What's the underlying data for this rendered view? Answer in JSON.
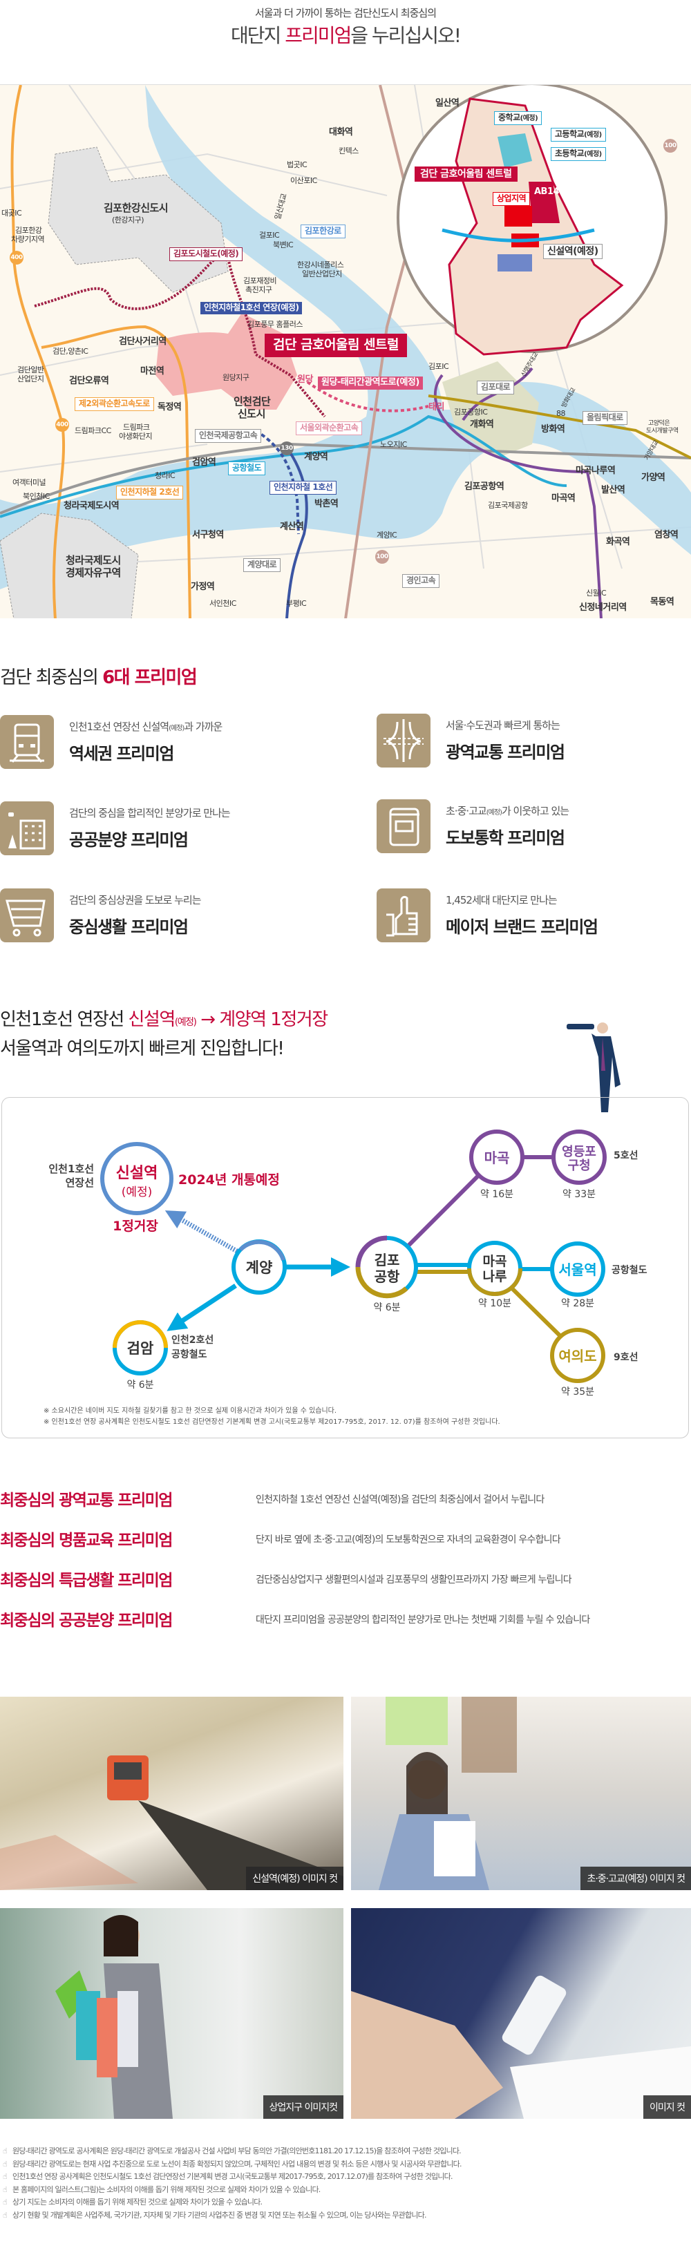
{
  "header": {
    "subtitle": "서울과 더 가까이 통하는 검단신도시 최중심의",
    "title_pre": "대단지 ",
    "title_red": "프리미엄",
    "title_post": "을 누리십시오!"
  },
  "map": {
    "labels": [
      "김포한강신도시",
      "(한강지구)",
      "김포도시철도(예정)",
      "대곶IC",
      "김포한강",
      "차량기지역",
      "400",
      "대화역",
      "킨텍스",
      "법곳IC",
      "이산포IC",
      "일산대교",
      "김포한강로",
      "걸포IC",
      "북변IC",
      "한강시네폴리스",
      "일반산업단지",
      "김포재정비",
      "촉진지구",
      "인천지하철1호선 연장(예정)",
      "김포풍무 홈플러스",
      "검단 금호어울림 센트럴",
      "검단사거리역",
      "검단,양촌IC",
      "검단일반",
      "산업단지",
      "검단오류역",
      "마전역",
      "원당지구",
      "인천검단",
      "신도시",
      "원당",
      "원당-태리간광역도로(예정)",
      "제2외곽순환고속도로",
      "독정역",
      "400",
      "드림파크CC",
      "드림파크",
      "야생화단지",
      "서울외곽순환고속",
      "인천국제공항고속",
      "130",
      "계양역",
      "검암역",
      "공항철도",
      "청라IC",
      "인천지하철 1호선",
      "인천지하철 2호선",
      "여객터미널",
      "북인천IC",
      "청라국제도시역",
      "박촌역",
      "계산역",
      "서구청역",
      "청라국제도시",
      "경제자유구역",
      "계양대로",
      "가정역",
      "서인천IC",
      "부평IC",
      "김포IC",
      "김포대로",
      "태리",
      "김포공항IC",
      "88",
      "올림픽대로",
      "개화역",
      "방화역",
      "노오지IC",
      "고양덕은",
      "도시개발구역",
      "마곡나루역",
      "가양역",
      "김포공항역",
      "발산역",
      "마곡역",
      "김포국제공항",
      "염창역",
      "계양IC",
      "100",
      "화곡역",
      "경인고속",
      "신월IC",
      "신정네거리역",
      "목동역",
      "일산역",
      "100",
      "신행주대교",
      "방화대교",
      "가양대교"
    ],
    "inset": {
      "middle": "중학교",
      "high": "고등학교",
      "elem": "초등학교",
      "planned": "(예정)",
      "complex": "검단 금호어울림 센트럴",
      "block": "AB14",
      "commercial": "상업지역",
      "station": "신설역(예정)"
    }
  },
  "premium6": {
    "title_pre": "검단 최중심의 ",
    "title_red": "6대 프리미엄",
    "items": [
      {
        "icon": "train-icon",
        "sub_pre": "인천1호선 연장선 신설역",
        "sub_small": "(예정)",
        "sub_post": "과 가까운",
        "title": "역세권 프리미엄"
      },
      {
        "icon": "highway-icon",
        "sub_pre": "서울·수도권과 빠르게 통하는",
        "sub_small": "",
        "sub_post": "",
        "title": "광역교통 프리미엄"
      },
      {
        "icon": "building-icon",
        "sub_pre": "검단의 중심을 합리적인 분양가로 만나는",
        "sub_small": "",
        "sub_post": "",
        "title": "공공분양 프리미엄"
      },
      {
        "icon": "book-icon",
        "sub_pre": "초·중·고교",
        "sub_small": "(예정)",
        "sub_post": "가 이웃하고 있는",
        "title": "도보통학 프리미엄"
      },
      {
        "icon": "cart-icon",
        "sub_pre": "검단의 중심상권을 도보로 누리는",
        "sub_small": "",
        "sub_post": "",
        "title": "중심생활 프리미엄"
      },
      {
        "icon": "thumbs-up-icon",
        "sub_pre": "1,452세대 대단지로 만나는",
        "sub_small": "",
        "sub_post": "",
        "title": "메이저 브랜드 프리미엄"
      }
    ]
  },
  "route": {
    "head1_pre": "인천1호선 연장선 ",
    "head1_red": "신설역",
    "head1_small": "(예정)",
    "head1_arrow": " → 계양역 1정거장",
    "head2": "서울역과 여의도까지 빠르게 진입합니다!",
    "line1_a": "인천1호선",
    "line1_b": "연장선",
    "new_st": "신설역",
    "new_st2": "(예정)",
    "open": "2024년 개통예정",
    "one_stop": "1정거장",
    "gyeyang": "계양",
    "geomam": "검암",
    "geomam_l1": "인천2호선",
    "geomam_l2": "공항철도",
    "geomam_t": "약 6분",
    "gimpo1": "김포",
    "gimpo2": "공항",
    "gimpo_t": "약 6분",
    "magok": "마곡",
    "magok_t": "약 16분",
    "ydp1": "영등포",
    "ydp2": "구청",
    "ydp_t": "약 33분",
    "line5": "5호선",
    "mgn1": "마곡",
    "mgn2": "나루",
    "mgn_t": "약 10분",
    "seoul": "서울역",
    "seoul_t": "약 28분",
    "arex": "공항철도",
    "yeouido": "여의도",
    "yeouido_t": "약 35분",
    "line9": "9호선",
    "note1": "※ 소요시간은 네이버 지도 지하철 길찾기를 참고 한 것으로 실제 이용시간과 차이가 있을 수 있습니다.",
    "note2": "※ 인천1호선 연장 공사계획은 인천도시철도 1호선 검단연장선 기본계획 변경 고시(국토교통부 제2017-795호, 2017. 12. 07)를 참조하여 구성한 것입니다.",
    "colors": {
      "line1": "#5b8fcf",
      "arex": "#00a9e0",
      "line5": "#7d4a9b",
      "line9": "#b89817",
      "line2": "#f5b800",
      "accent": "#c5093b"
    }
  },
  "premium_list": [
    {
      "title": "최중심의 광역교통 프리미엄",
      "desc": "인천지하철 1호선 연장선 신설역(예정)을 검단의 최중심에서 걸어서 누립니다"
    },
    {
      "title": "최중심의 명품교육 프리미엄",
      "desc": "단지 바로 옆에 초·중·고교(예정)의 도보통학권으로 자녀의 교육환경이 우수합니다"
    },
    {
      "title": "최중심의 특급생활 프리미엄",
      "desc": "검단중심상업지구 생활편의시설과 김포풍무의 생활인프라까지 가장 빠르게 누립니다"
    },
    {
      "title": "최중심의 공공분양 프리미엄",
      "desc": "대단지 프리미엄을 공공분양의 합리적인 분양가로 만나는 첫번째 기회를 누릴 수 있습니다"
    }
  ],
  "photos": [
    "신설역(예정) 이미지 컷",
    "초·중·고교(예정) 이미지 컷",
    "상업지구 이미지컷",
    "이미지 컷"
  ],
  "footnotes": [
    "원당-태리간 광역도로 공사계획은 원당-태리간 광역도로 개설공사 건설 사업비 부담 동의안 가결(의안번호1181.20 17.12.15)을 참조하여 구성한 것입니다.",
    "원당-태리간 광역도로는 현재 사업 추진중으로 도로 노선이 최종 확정되지 않았으며, 구체적인 사업 내용의 변경 및 취소 등은 시행사 및 시공사와 무관합니다.",
    "인천1호선 연장 공사계획은 인천도시철도 1호선 검단연장선 기본계획 변경 고시(국토교통부 제2017-795호, 2017.12.07)를 참조하여 구성한 것입니다.",
    "본 홈페이지의 일러스트(그림)는 소비자의 이해를 돕기 위해 제작된 것으로 실제와 차이가 있을 수 있습니다.",
    "상기 지도는 소비자의 이해를 돕기 위해 제작된 것으로 실제와 차이가 있을 수 있습니다.",
    "상기 현황 및 개발계획은 사업주체, 국가기관, 지자체 및 기타 기관의 사업추진 중 변경 및 지연 또는 취소될 수 있으며, 이는 당사와는 무관합니다."
  ]
}
